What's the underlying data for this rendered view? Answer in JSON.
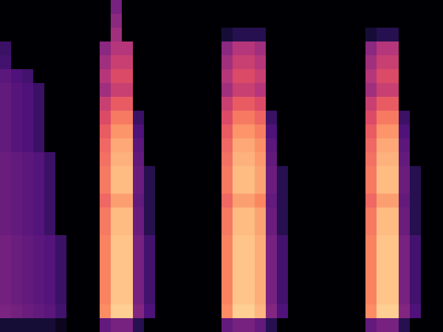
{
  "chart_data": {
    "type": "heatmap",
    "tick_labels": false,
    "zlim": [
      0,
      100
    ],
    "cells": [
      [
        0,
        0,
        0,
        0,
        0,
        0,
        0,
        0,
        0,
        0,
        35,
        0,
        0,
        0,
        0,
        0,
        0,
        0,
        0,
        0,
        0,
        0,
        0,
        0,
        0,
        0,
        0,
        0,
        0,
        0,
        0,
        0,
        0,
        0,
        0,
        0,
        0,
        0,
        0,
        0
      ],
      [
        0,
        0,
        0,
        0,
        0,
        0,
        0,
        0,
        0,
        0,
        40,
        0,
        0,
        0,
        0,
        0,
        0,
        0,
        0,
        0,
        0,
        0,
        0,
        0,
        0,
        0,
        0,
        0,
        0,
        0,
        0,
        0,
        0,
        0,
        0,
        0,
        0,
        0,
        0,
        0
      ],
      [
        0,
        0,
        0,
        0,
        0,
        0,
        0,
        0,
        0,
        0,
        45,
        0,
        0,
        0,
        0,
        0,
        0,
        0,
        0,
        0,
        10,
        15,
        15,
        15,
        0,
        0,
        0,
        0,
        0,
        0,
        0,
        0,
        0,
        10,
        15,
        15,
        0,
        0,
        0,
        0
      ],
      [
        20,
        0,
        0,
        0,
        0,
        0,
        0,
        0,
        0,
        40,
        50,
        50,
        0,
        0,
        0,
        0,
        0,
        0,
        0,
        0,
        40,
        50,
        50,
        45,
        0,
        0,
        0,
        0,
        0,
        0,
        0,
        0,
        0,
        40,
        50,
        50,
        0,
        0,
        0,
        0
      ],
      [
        22,
        0,
        0,
        0,
        0,
        0,
        0,
        0,
        0,
        45,
        55,
        55,
        0,
        0,
        0,
        0,
        0,
        0,
        0,
        0,
        45,
        55,
        55,
        50,
        0,
        0,
        0,
        0,
        0,
        0,
        0,
        0,
        0,
        45,
        55,
        55,
        0,
        0,
        0,
        0
      ],
      [
        28,
        25,
        22,
        0,
        0,
        0,
        0,
        0,
        0,
        50,
        60,
        60,
        0,
        0,
        0,
        0,
        0,
        0,
        0,
        0,
        50,
        60,
        60,
        55,
        0,
        0,
        0,
        0,
        0,
        0,
        0,
        0,
        0,
        50,
        60,
        60,
        0,
        0,
        0,
        0
      ],
      [
        30,
        27,
        25,
        20,
        0,
        0,
        0,
        0,
        0,
        45,
        55,
        55,
        0,
        0,
        0,
        0,
        0,
        0,
        0,
        0,
        45,
        55,
        55,
        50,
        0,
        0,
        0,
        0,
        0,
        0,
        0,
        0,
        0,
        45,
        55,
        55,
        0,
        0,
        0,
        0
      ],
      [
        30,
        27,
        25,
        20,
        0,
        0,
        0,
        0,
        0,
        55,
        65,
        65,
        0,
        0,
        0,
        0,
        0,
        0,
        0,
        0,
        55,
        65,
        65,
        60,
        0,
        0,
        0,
        0,
        0,
        0,
        0,
        0,
        0,
        55,
        65,
        65,
        0,
        0,
        0,
        0
      ],
      [
        30,
        27,
        25,
        20,
        0,
        0,
        0,
        0,
        0,
        60,
        72,
        72,
        20,
        0,
        0,
        0,
        0,
        0,
        0,
        0,
        60,
        72,
        72,
        67,
        20,
        0,
        0,
        0,
        0,
        0,
        0,
        0,
        0,
        60,
        72,
        72,
        20,
        0,
        0,
        0
      ],
      [
        30,
        27,
        25,
        20,
        0,
        0,
        0,
        0,
        0,
        65,
        78,
        78,
        25,
        0,
        0,
        0,
        0,
        0,
        0,
        0,
        65,
        78,
        78,
        73,
        25,
        0,
        0,
        0,
        0,
        0,
        0,
        0,
        0,
        65,
        78,
        78,
        25,
        0,
        0,
        0
      ],
      [
        30,
        27,
        25,
        20,
        0,
        0,
        0,
        0,
        0,
        68,
        82,
        82,
        28,
        0,
        0,
        0,
        0,
        0,
        0,
        0,
        68,
        82,
        82,
        77,
        28,
        0,
        0,
        0,
        0,
        0,
        0,
        0,
        0,
        68,
        82,
        82,
        28,
        0,
        0,
        0
      ],
      [
        32,
        30,
        28,
        26,
        20,
        0,
        0,
        0,
        0,
        70,
        84,
        84,
        30,
        0,
        0,
        0,
        0,
        0,
        0,
        0,
        70,
        84,
        84,
        79,
        30,
        0,
        0,
        0,
        0,
        0,
        0,
        0,
        0,
        70,
        84,
        84,
        30,
        0,
        0,
        0
      ],
      [
        32,
        30,
        28,
        26,
        20,
        0,
        0,
        0,
        0,
        72,
        86,
        86,
        32,
        15,
        0,
        0,
        0,
        0,
        0,
        0,
        72,
        86,
        86,
        81,
        32,
        15,
        0,
        0,
        0,
        0,
        0,
        0,
        0,
        72,
        86,
        86,
        32,
        15,
        0,
        0
      ],
      [
        32,
        30,
        28,
        26,
        20,
        0,
        0,
        0,
        0,
        72,
        86,
        86,
        32,
        15,
        0,
        0,
        0,
        0,
        0,
        0,
        72,
        86,
        86,
        81,
        32,
        15,
        0,
        0,
        0,
        0,
        0,
        0,
        0,
        72,
        86,
        86,
        32,
        15,
        0,
        0
      ],
      [
        32,
        30,
        28,
        26,
        20,
        0,
        0,
        0,
        0,
        68,
        80,
        80,
        30,
        15,
        0,
        0,
        0,
        0,
        0,
        0,
        68,
        80,
        80,
        75,
        30,
        15,
        0,
        0,
        0,
        0,
        0,
        0,
        0,
        68,
        80,
        80,
        30,
        15,
        0,
        0
      ],
      [
        32,
        30,
        28,
        26,
        20,
        0,
        0,
        0,
        0,
        72,
        86,
        86,
        32,
        15,
        0,
        0,
        0,
        0,
        0,
        0,
        72,
        86,
        86,
        81,
        32,
        15,
        0,
        0,
        0,
        0,
        0,
        0,
        0,
        72,
        86,
        86,
        32,
        15,
        0,
        0
      ],
      [
        32,
        30,
        28,
        26,
        20,
        0,
        0,
        0,
        0,
        72,
        86,
        86,
        32,
        15,
        0,
        0,
        0,
        0,
        0,
        0,
        72,
        86,
        86,
        81,
        32,
        15,
        0,
        0,
        0,
        0,
        0,
        0,
        0,
        72,
        86,
        86,
        32,
        15,
        0,
        0
      ],
      [
        34,
        32,
        30,
        28,
        26,
        20,
        0,
        0,
        0,
        74,
        88,
        88,
        35,
        22,
        0,
        0,
        0,
        0,
        0,
        0,
        74,
        88,
        88,
        83,
        35,
        22,
        0,
        0,
        0,
        0,
        0,
        0,
        0,
        74,
        88,
        88,
        35,
        22,
        0,
        0
      ],
      [
        34,
        32,
        30,
        28,
        26,
        20,
        0,
        0,
        0,
        74,
        88,
        88,
        35,
        22,
        0,
        0,
        0,
        0,
        0,
        0,
        74,
        88,
        88,
        83,
        35,
        22,
        0,
        0,
        0,
        0,
        0,
        0,
        0,
        74,
        88,
        88,
        35,
        22,
        0,
        0
      ],
      [
        34,
        32,
        30,
        28,
        26,
        20,
        0,
        0,
        0,
        74,
        88,
        88,
        35,
        22,
        0,
        0,
        0,
        0,
        0,
        0,
        74,
        88,
        88,
        83,
        35,
        22,
        0,
        0,
        0,
        0,
        0,
        0,
        0,
        74,
        88,
        88,
        35,
        22,
        0,
        0
      ],
      [
        34,
        32,
        30,
        28,
        26,
        20,
        0,
        0,
        0,
        74,
        88,
        88,
        35,
        22,
        0,
        0,
        0,
        0,
        0,
        0,
        74,
        88,
        88,
        83,
        35,
        22,
        0,
        0,
        0,
        0,
        0,
        0,
        0,
        74,
        88,
        88,
        35,
        22,
        0,
        0
      ],
      [
        34,
        32,
        30,
        28,
        26,
        20,
        0,
        0,
        0,
        74,
        88,
        88,
        35,
        22,
        0,
        0,
        0,
        0,
        0,
        0,
        74,
        88,
        88,
        83,
        35,
        22,
        0,
        0,
        0,
        0,
        0,
        0,
        0,
        74,
        88,
        88,
        35,
        22,
        0,
        0
      ],
      [
        36,
        34,
        32,
        30,
        28,
        22,
        0,
        0,
        0,
        76,
        90,
        90,
        38,
        25,
        0,
        0,
        0,
        0,
        0,
        0,
        76,
        90,
        90,
        85,
        38,
        25,
        0,
        0,
        0,
        0,
        0,
        0,
        0,
        76,
        90,
        90,
        38,
        25,
        0,
        0
      ],
      [
        10,
        10,
        10,
        10,
        10,
        5,
        0,
        0,
        0,
        30,
        35,
        35,
        15,
        0,
        0,
        0,
        0,
        0,
        0,
        0,
        30,
        35,
        35,
        30,
        15,
        0,
        0,
        0,
        0,
        0,
        0,
        0,
        0,
        30,
        35,
        35,
        15,
        0,
        0,
        0
      ]
    ]
  }
}
